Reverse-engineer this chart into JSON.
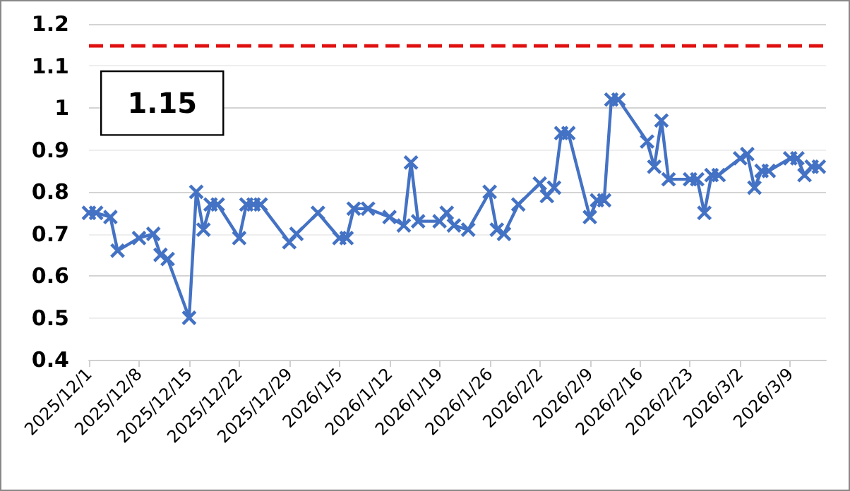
{
  "chart_data": {
    "type": "line",
    "x": [
      "2025-12-01",
      "2025-12-02",
      "2025-12-04",
      "2025-12-05",
      "2025-12-08",
      "2025-12-10",
      "2025-12-11",
      "2025-12-12",
      "2025-12-15",
      "2025-12-16",
      "2025-12-17",
      "2025-12-18",
      "2025-12-19",
      "2025-12-22",
      "2025-12-23",
      "2025-12-24",
      "2025-12-25",
      "2025-12-29",
      "2025-12-30",
      "2026-01-02",
      "2026-01-05",
      "2026-01-06",
      "2026-01-07",
      "2026-01-09",
      "2026-01-12",
      "2026-01-14",
      "2026-01-15",
      "2026-01-16",
      "2026-01-19",
      "2026-01-20",
      "2026-01-21",
      "2026-01-23",
      "2026-01-26",
      "2026-01-27",
      "2026-01-28",
      "2026-01-30",
      "2026-02-02",
      "2026-02-03",
      "2026-02-04",
      "2026-02-05",
      "2026-02-06",
      "2026-02-09",
      "2026-02-10",
      "2026-02-11",
      "2026-02-12",
      "2026-02-13",
      "2026-02-17",
      "2026-02-18",
      "2026-02-19",
      "2026-02-20",
      "2026-02-23",
      "2026-02-24",
      "2026-02-25",
      "2026-02-26",
      "2026-02-27",
      "2026-03-02",
      "2026-03-03",
      "2026-03-04",
      "2026-03-05",
      "2026-03-06",
      "2026-03-09",
      "2026-03-10",
      "2026-03-11",
      "2026-03-12",
      "2026-03-13"
    ],
    "series": [
      {
        "color": "#4472c4",
        "values": [
          0.75,
          0.75,
          0.74,
          0.66,
          0.69,
          0.7,
          0.65,
          0.64,
          0.5,
          0.8,
          0.71,
          0.77,
          0.77,
          0.69,
          0.77,
          0.77,
          0.77,
          0.68,
          0.7,
          0.75,
          0.69,
          0.69,
          0.76,
          0.76,
          0.74,
          0.72,
          0.87,
          0.73,
          0.73,
          0.75,
          0.72,
          0.71,
          0.8,
          0.71,
          0.7,
          0.77,
          0.82,
          0.79,
          0.81,
          0.94,
          0.94,
          0.74,
          0.78,
          0.78,
          1.02,
          1.02,
          0.92,
          0.86,
          0.97,
          0.83,
          0.83,
          0.83,
          0.75,
          0.84,
          0.84,
          0.88,
          0.89,
          0.81,
          0.85,
          0.85,
          0.88,
          0.88,
          0.84,
          0.86,
          0.86
        ]
      }
    ],
    "xlim": [
      "2025-12-01",
      "2026-03-14"
    ],
    "xticks": [
      {
        "value": "2025-12-01",
        "label": "2025/12/1"
      },
      {
        "value": "2025-12-08",
        "label": "2025/12/8"
      },
      {
        "value": "2025-12-15",
        "label": "2025/12/15"
      },
      {
        "value": "2025-12-22",
        "label": "2025/12/22"
      },
      {
        "value": "2025-12-29",
        "label": "2025/12/29"
      },
      {
        "value": "2026-01-05",
        "label": "2026/1/5"
      },
      {
        "value": "2026-01-12",
        "label": "2026/1/12"
      },
      {
        "value": "2026-01-19",
        "label": "2026/1/19"
      },
      {
        "value": "2026-01-26",
        "label": "2026/1/26"
      },
      {
        "value": "2026-02-02",
        "label": "2026/2/2"
      },
      {
        "value": "2026-02-09",
        "label": "2026/2/9"
      },
      {
        "value": "2026-02-16",
        "label": "2026/2/16"
      },
      {
        "value": "2026-02-23",
        "label": "2026/2/23"
      },
      {
        "value": "2026-03-02",
        "label": "2026/3/2"
      },
      {
        "value": "2026-03-09",
        "label": "2026/3/9"
      }
    ],
    "ylim": [
      0.4,
      1.2
    ],
    "yticks": [
      0.4,
      0.5,
      0.6,
      0.7,
      0.8,
      0.9,
      1,
      1.1,
      1.2
    ],
    "ref_lines": [
      {
        "axis": "y",
        "value": 1.15,
        "label": "1.15",
        "color": "#e01010",
        "line_style": "dashed"
      }
    ],
    "grid": "y",
    "marker": "cross",
    "line_style": "solid"
  }
}
